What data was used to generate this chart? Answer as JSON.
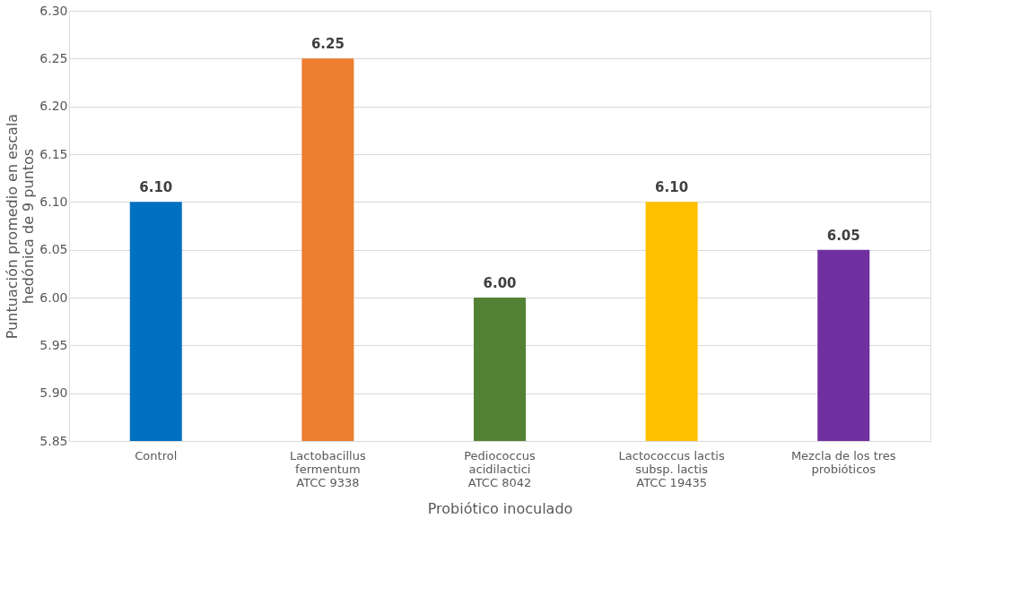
{
  "chart_data": {
    "type": "bar",
    "xlabel": "Probiótico inoculado",
    "ylabel": "Puntuación promedio en escala\nhedónica de 9 puntos",
    "categories": [
      "Control",
      "Lactobacillus\nfermentum\nATCC 9338",
      "Pediococcus\nacidilactici\nATCC 8042",
      "Lactococcus lactis\nsubsp. lactis\nATCC 19435",
      "Mezcla de los tres\nprobióticos"
    ],
    "values": [
      6.1,
      6.25,
      6.0,
      6.1,
      6.05
    ],
    "colors": [
      "#0070c0",
      "#ed7d31",
      "#548235",
      "#ffc000",
      "#7030a0"
    ],
    "value_labels": [
      "6.10",
      "6.25",
      "6.00",
      "6.10",
      "6.05"
    ],
    "ylim": [
      5.85,
      6.3
    ],
    "yticks": [
      {
        "value": 5.85,
        "label": "5.85"
      },
      {
        "value": 5.9,
        "label": "5.90"
      },
      {
        "value": 5.95,
        "label": "5.95"
      },
      {
        "value": 6.0,
        "label": "6.00"
      },
      {
        "value": 6.05,
        "label": "6.05"
      },
      {
        "value": 6.1,
        "label": "6.10"
      },
      {
        "value": 6.15,
        "label": "6.15"
      },
      {
        "value": 6.2,
        "label": "6.20"
      },
      {
        "value": 6.25,
        "label": "6.25"
      },
      {
        "value": 6.3,
        "label": "6.30"
      }
    ],
    "grid": "y",
    "legend": false
  }
}
